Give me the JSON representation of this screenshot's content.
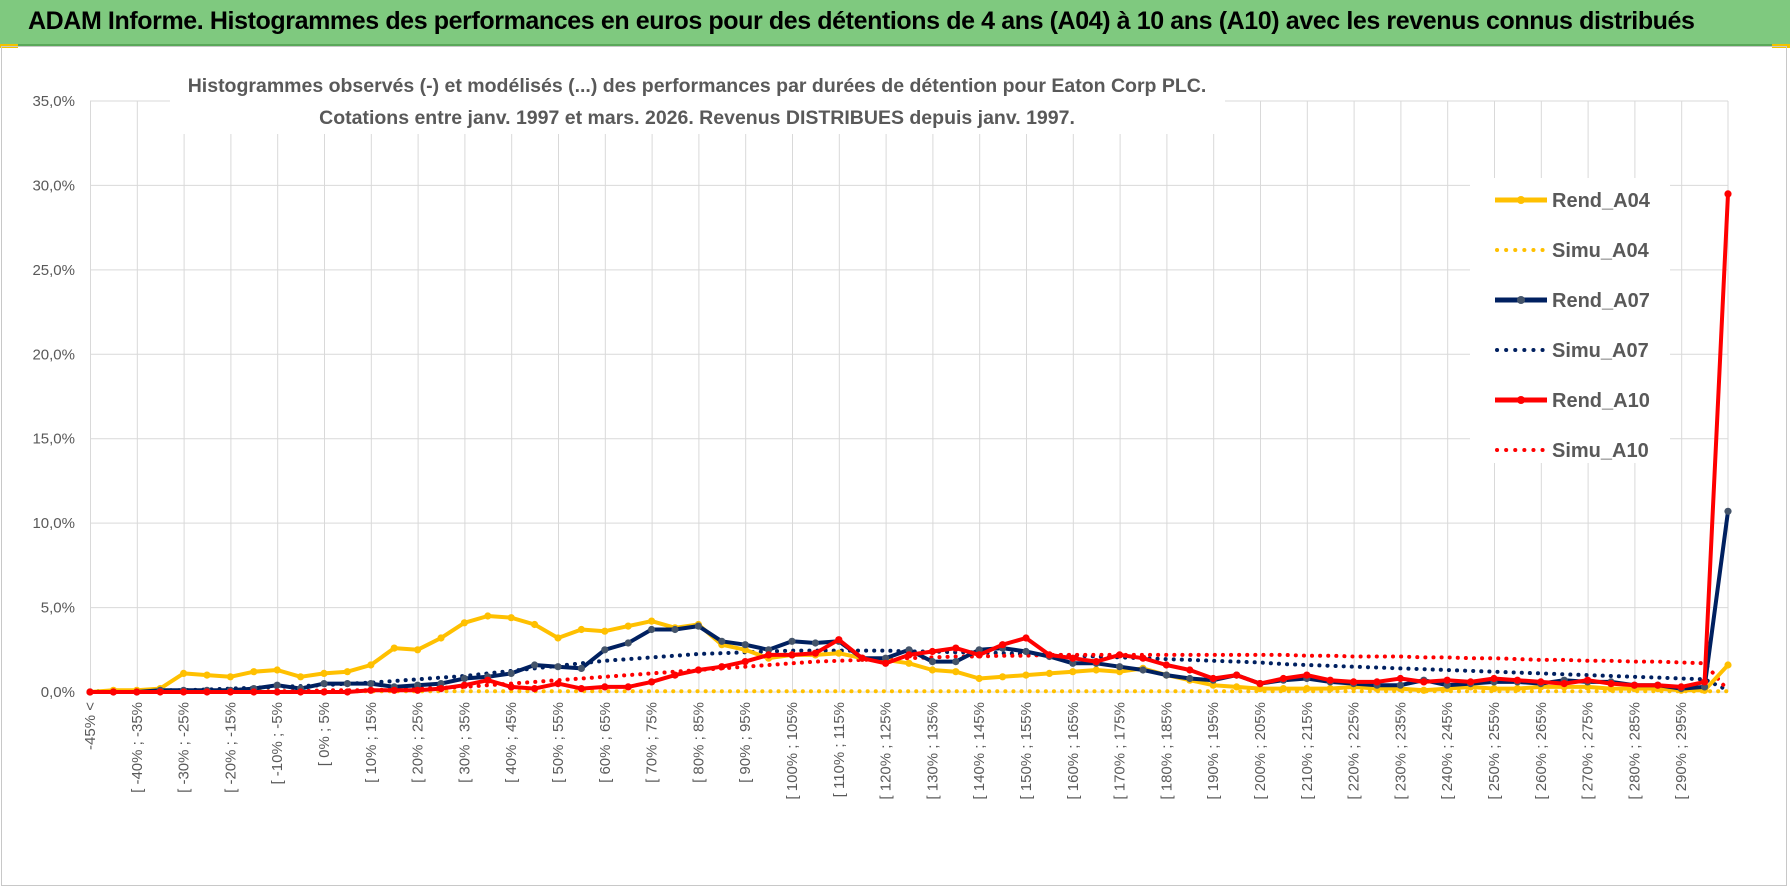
{
  "banner": {
    "title": "ADAM Informe. Histogrammes des performances en euros pour des détentions de 4 ans (A04) à 10 ans (A10) avec les revenus connus distribués"
  },
  "colors": {
    "banner": "#7fc97f",
    "corner_accent": "#f2c200",
    "A04": "#ffc000",
    "A07": "#002060",
    "A07_marker": "#44546a",
    "A10": "#ff0000",
    "grid": "#d9d9d9",
    "text": "#595959"
  },
  "chart_data": {
    "type": "line",
    "title_lines": [
      "Histogrammes observés (-) et modélisés (...) des performances par durées de détention pour Eaton Corp PLC.",
      "Cotations entre janv. 1997 et mars. 2026.  Revenus DISTRIBUES depuis janv. 1997."
    ],
    "ylim": [
      0,
      35
    ],
    "yticks": [
      "0,0%",
      "5,0%",
      "10,0%",
      "15,0%",
      "20,0%",
      "25,0%",
      "30,0%",
      "35,0%"
    ],
    "y_unit": "%",
    "grid": true,
    "legend_position": "right",
    "x_tick_labels": [
      "-45% <",
      "[ -40% ; -35%",
      "[ -30% ; -25%",
      "[ -20% ; -15%",
      "[ -10% ; -5%",
      "[ 0% ; 5%",
      "[ 10% ; 15%",
      "[ 20% ; 25%",
      "[ 30% ; 35%",
      "[ 40% ; 45%",
      "[ 50% ; 55%",
      "[ 60% ; 65%",
      "[ 70% ; 75%",
      "[ 80% ; 85%",
      "[ 90% ; 95%",
      "[ 100% ; 105%",
      "[ 110% ; 115%",
      "[ 120% ; 125%",
      "[ 130% ; 135%",
      "[ 140% ; 145%",
      "[ 150% ; 155%",
      "[ 160% ; 165%",
      "[ 170% ; 175%",
      "[ 180% ; 185%",
      "[ 190% ; 195%",
      "[ 200% ; 205%",
      "[ 210% ; 215%",
      "[ 220% ; 225%",
      "[ 230% ; 235%",
      "[ 240% ; 245%",
      "[ 250% ; 255%",
      "[ 260% ; 265%",
      "[ 270% ; 275%",
      "[ 280% ; 285%",
      "[ 290% ; 295%"
    ],
    "categories_note": "71 bins: -45% <, then 5% bins from [-45%;-40%[ up to [295%;300%[, then >= 300%",
    "series": [
      {
        "name": "Rend_A04",
        "style": "solid",
        "color": "#ffc000",
        "values": [
          0.0,
          0.1,
          0.1,
          0.2,
          1.1,
          1.0,
          0.9,
          1.2,
          1.3,
          0.9,
          1.1,
          1.2,
          1.6,
          2.6,
          2.5,
          3.2,
          4.1,
          4.5,
          4.4,
          4.0,
          3.2,
          3.7,
          3.6,
          3.9,
          4.2,
          3.8,
          4.0,
          2.8,
          2.5,
          2.0,
          2.2,
          2.2,
          2.3,
          2.0,
          1.9,
          1.7,
          1.3,
          1.2,
          0.8,
          0.9,
          1.0,
          1.1,
          1.2,
          1.3,
          1.2,
          1.4,
          1.0,
          0.7,
          0.4,
          0.3,
          0.2,
          0.2,
          0.2,
          0.2,
          0.3,
          0.2,
          0.2,
          0.1,
          0.2,
          0.3,
          0.2,
          0.2,
          0.3,
          0.3,
          0.3,
          0.2,
          0.2,
          0.2,
          0.1,
          0.1,
          1.6
        ]
      },
      {
        "name": "Simu_A04",
        "style": "dotted",
        "color": "#ffc000",
        "values": [
          0.05,
          0.05,
          0.05,
          0.05,
          0.05,
          0.05,
          0.05,
          0.05,
          0.05,
          0.05,
          0.05,
          0.05,
          0.05,
          0.05,
          0.05,
          0.05,
          0.05,
          0.05,
          0.05,
          0.05,
          0.05,
          0.05,
          0.05,
          0.05,
          0.05,
          0.05,
          0.05,
          0.05,
          0.05,
          0.05,
          0.05,
          0.05,
          0.05,
          0.05,
          0.05,
          0.05,
          0.05,
          0.05,
          0.05,
          0.05,
          0.05,
          0.05,
          0.05,
          0.05,
          0.05,
          0.05,
          0.05,
          0.05,
          0.05,
          0.05,
          0.05,
          0.05,
          0.05,
          0.05,
          0.05,
          0.05,
          0.05,
          0.05,
          0.05,
          0.05,
          0.05,
          0.05,
          0.05,
          0.05,
          0.05,
          0.05,
          0.05,
          0.05,
          0.05,
          0.05,
          0.05
        ]
      },
      {
        "name": "Rend_A07",
        "style": "solid",
        "color": "#002060",
        "values": [
          0.0,
          0.0,
          0.0,
          0.1,
          0.1,
          0.1,
          0.1,
          0.2,
          0.4,
          0.2,
          0.5,
          0.5,
          0.5,
          0.3,
          0.4,
          0.5,
          0.8,
          0.9,
          1.1,
          1.6,
          1.5,
          1.4,
          2.5,
          2.9,
          3.7,
          3.7,
          3.9,
          3.0,
          2.8,
          2.5,
          3.0,
          2.9,
          3.0,
          2.0,
          2.0,
          2.5,
          1.8,
          1.8,
          2.5,
          2.6,
          2.4,
          2.1,
          1.7,
          1.7,
          1.5,
          1.3,
          1.0,
          0.8,
          0.7,
          1.0,
          0.5,
          0.7,
          0.8,
          0.6,
          0.5,
          0.4,
          0.4,
          0.7,
          0.4,
          0.5,
          0.6,
          0.6,
          0.5,
          0.7,
          0.6,
          0.6,
          0.4,
          0.4,
          0.2,
          0.3,
          10.7
        ]
      },
      {
        "name": "Simu_A07",
        "style": "dotted",
        "color": "#002060",
        "values": [
          0.05,
          0.05,
          0.05,
          0.1,
          0.1,
          0.15,
          0.2,
          0.25,
          0.3,
          0.35,
          0.4,
          0.5,
          0.55,
          0.65,
          0.75,
          0.85,
          0.95,
          1.1,
          1.25,
          1.4,
          1.55,
          1.7,
          1.85,
          1.95,
          2.05,
          2.15,
          2.25,
          2.3,
          2.35,
          2.4,
          2.45,
          2.45,
          2.45,
          2.45,
          2.45,
          2.4,
          2.4,
          2.35,
          2.35,
          2.3,
          2.25,
          2.2,
          2.15,
          2.1,
          2.05,
          2.0,
          1.95,
          1.9,
          1.85,
          1.8,
          1.75,
          1.65,
          1.6,
          1.55,
          1.5,
          1.45,
          1.4,
          1.35,
          1.3,
          1.25,
          1.2,
          1.15,
          1.1,
          1.05,
          1.0,
          0.95,
          0.9,
          0.85,
          0.8,
          0.75,
          0.1
        ]
      },
      {
        "name": "Rend_A10",
        "style": "solid",
        "color": "#ff0000",
        "values": [
          0.0,
          0.0,
          0.0,
          0.0,
          0.0,
          0.0,
          0.0,
          0.0,
          0.0,
          0.0,
          0.0,
          0.0,
          0.1,
          0.1,
          0.1,
          0.2,
          0.4,
          0.7,
          0.3,
          0.2,
          0.5,
          0.2,
          0.3,
          0.3,
          0.6,
          1.0,
          1.3,
          1.5,
          1.8,
          2.2,
          2.2,
          2.3,
          3.1,
          2.0,
          1.7,
          2.2,
          2.4,
          2.6,
          2.2,
          2.8,
          3.2,
          2.2,
          2.0,
          1.8,
          2.2,
          2.0,
          1.6,
          1.3,
          0.8,
          1.0,
          0.5,
          0.8,
          1.0,
          0.7,
          0.6,
          0.6,
          0.8,
          0.6,
          0.7,
          0.6,
          0.8,
          0.7,
          0.6,
          0.5,
          0.7,
          0.5,
          0.4,
          0.4,
          0.3,
          0.6,
          29.5
        ]
      },
      {
        "name": "Simu_A10",
        "style": "dotted",
        "color": "#ff0000",
        "values": [
          0.0,
          0.0,
          0.0,
          0.0,
          0.0,
          0.0,
          0.0,
          0.0,
          0.05,
          0.05,
          0.1,
          0.1,
          0.1,
          0.15,
          0.2,
          0.25,
          0.3,
          0.4,
          0.5,
          0.6,
          0.7,
          0.8,
          0.9,
          1.0,
          1.1,
          1.2,
          1.3,
          1.4,
          1.5,
          1.6,
          1.7,
          1.8,
          1.85,
          1.9,
          1.95,
          2.0,
          2.05,
          2.1,
          2.1,
          2.15,
          2.15,
          2.2,
          2.2,
          2.2,
          2.2,
          2.2,
          2.2,
          2.2,
          2.2,
          2.2,
          2.2,
          2.2,
          2.15,
          2.15,
          2.1,
          2.1,
          2.1,
          2.05,
          2.05,
          2.0,
          2.0,
          1.95,
          1.9,
          1.9,
          1.85,
          1.85,
          1.8,
          1.8,
          1.75,
          1.7,
          0.1
        ]
      }
    ]
  }
}
